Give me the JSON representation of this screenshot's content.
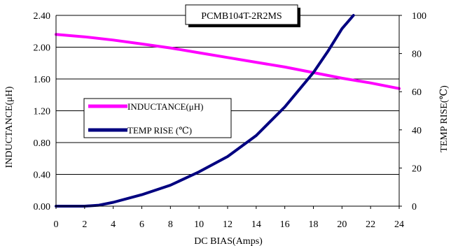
{
  "chart_data": {
    "type": "line",
    "title": "PCMB104T-2R2MS",
    "xlabel": "DC BIAS(Amps)",
    "ylabel_left": "INDUCTANCE(μH)",
    "ylabel_right": "TEMP RISE(℃)",
    "xlim": [
      0,
      24
    ],
    "ylim_left": [
      0,
      2.4
    ],
    "ylim_right": [
      0,
      100
    ],
    "x_ticks": [
      "0",
      "2",
      "4",
      "6",
      "8",
      "10",
      "12",
      "14",
      "16",
      "18",
      "20",
      "22",
      "24"
    ],
    "y_left_ticks": [
      "0.00",
      "0.40",
      "0.80",
      "1.20",
      "1.60",
      "2.00",
      "2.40"
    ],
    "y_right_ticks": [
      "0",
      "20",
      "40",
      "60",
      "80",
      "100"
    ],
    "grid": "horizontal",
    "legend_position": "middle-left",
    "series": [
      {
        "name": "INDUCTANCE(μH)",
        "axis": "left",
        "color": "#ff00ff",
        "x": [
          0,
          2,
          4,
          6,
          8,
          10,
          12,
          14,
          16,
          18,
          20,
          22,
          24
        ],
        "y": [
          2.16,
          2.13,
          2.09,
          2.04,
          1.99,
          1.93,
          1.87,
          1.81,
          1.75,
          1.68,
          1.61,
          1.55,
          1.48
        ]
      },
      {
        "name": "TEMP RISE (℃)",
        "axis": "right",
        "color": "#000080",
        "x": [
          0,
          2,
          3,
          4,
          6,
          8,
          10,
          12,
          14,
          16,
          18,
          19,
          20,
          20.8
        ],
        "y": [
          0,
          0,
          0.5,
          2,
          6,
          11,
          18,
          26,
          37,
          52,
          70,
          81,
          93,
          100
        ]
      }
    ]
  }
}
